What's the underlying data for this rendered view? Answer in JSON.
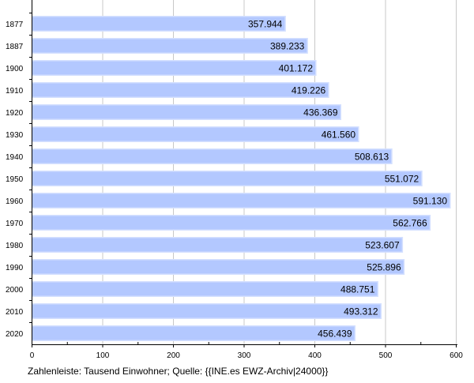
{
  "caption": "Zahlenleiste: Tausend Einwohner; Quelle: {{INE.es EWZ-Archiv|24000}}",
  "colors": {
    "bar_fill": "#b3c8ff",
    "bar_edge": "#d4e0ff",
    "grid": "#c8c8c8",
    "axis": "#000000",
    "text": "#000000"
  },
  "chart_data": {
    "type": "bar",
    "orientation": "horizontal",
    "categories": [
      "1877",
      "1887",
      "1900",
      "1910",
      "1920",
      "1930",
      "1940",
      "1950",
      "1960",
      "1970",
      "1980",
      "1990",
      "2000",
      "2010",
      "2020"
    ],
    "values": [
      357.944,
      389.233,
      401.172,
      419.226,
      436.369,
      461.56,
      508.613,
      551.072,
      591.13,
      562.766,
      523.607,
      525.896,
      488.751,
      493.312,
      456.439
    ],
    "value_labels": [
      "357.944",
      "389.233",
      "401.172",
      "419.226",
      "436.369",
      "461.560",
      "508.613",
      "551.072",
      "591.130",
      "562.766",
      "523.607",
      "525.896",
      "488.751",
      "493.312",
      "456.439"
    ],
    "xlim": [
      0,
      600
    ],
    "x_ticks": [
      0,
      100,
      200,
      300,
      400,
      500,
      600
    ],
    "x_tick_labels": [
      "0",
      "100",
      "200",
      "300",
      "400",
      "500",
      "600"
    ],
    "grid": true,
    "legend": "none"
  }
}
